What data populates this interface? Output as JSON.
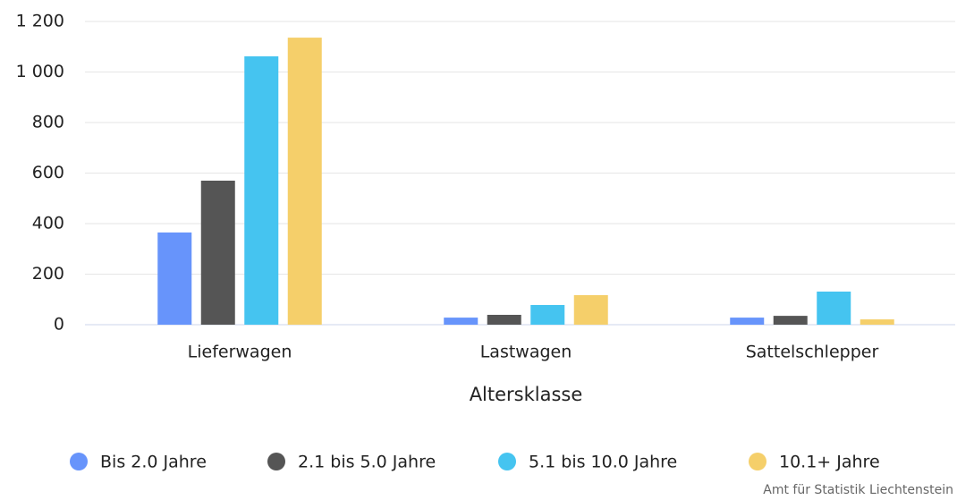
{
  "chart_data": {
    "type": "bar",
    "categories": [
      "Lieferwagen",
      "Lastwagen",
      "Sattelschlepper"
    ],
    "x_label": "Altersklasse",
    "credit": "Amt für Statistik Liechtenstein",
    "series": [
      {
        "name": "Bis 2.0 Jahre",
        "color": "#6794fb",
        "values": [
          365,
          28,
          28
        ]
      },
      {
        "name": "2.1 bis 5.0 Jahre",
        "color": "#555555",
        "values": [
          570,
          39,
          35
        ]
      },
      {
        "name": "5.1 bis 10.0 Jahre",
        "color": "#45c4f0",
        "values": [
          1062,
          78,
          131
        ]
      },
      {
        "name": "10.1+ Jahre",
        "color": "#f5cf6a",
        "values": [
          1136,
          117,
          21
        ]
      }
    ],
    "ylim": [
      0,
      1200
    ],
    "yticks": [
      0,
      200,
      400,
      600,
      800,
      {
        "value": 1000,
        "label": "1 000"
      },
      {
        "value": 1200,
        "label": "1 200"
      }
    ],
    "grid": true,
    "legend": "bottom"
  }
}
